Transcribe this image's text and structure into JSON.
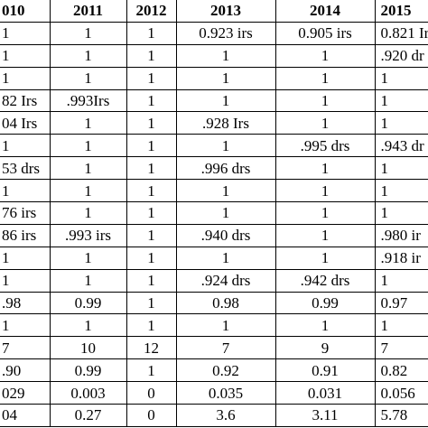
{
  "table": {
    "header": [
      "010",
      "2011",
      "2012",
      "2013",
      "2014",
      "2015"
    ],
    "rows": [
      [
        "1",
        "1",
        "1",
        "0.923 irs",
        "0.905 irs",
        "0.821 Ir"
      ],
      [
        "1",
        "1",
        "1",
        "1",
        "1",
        ".920 dr"
      ],
      [
        "1",
        "1",
        "1",
        "1",
        "1",
        "1"
      ],
      [
        "82 Irs",
        ".993Irs",
        "1",
        "1",
        "1",
        "1"
      ],
      [
        "04 Irs",
        "1",
        "1",
        ".928 Irs",
        "1",
        "1"
      ],
      [
        "1",
        "1",
        "1",
        "1",
        ".995 drs",
        ".943 dr"
      ],
      [
        "53 drs",
        "1",
        "1",
        ".996 drs",
        "1",
        "1"
      ],
      [
        "1",
        "1",
        "1",
        "1",
        "1",
        "1"
      ],
      [
        "76 irs",
        "1",
        "1",
        "1",
        "1",
        "1"
      ],
      [
        "86 irs",
        ".993 irs",
        "1",
        ".940 drs",
        "1",
        ".980 ir"
      ],
      [
        "1",
        "1",
        "1",
        "1",
        "1",
        ".918 ir"
      ],
      [
        "1",
        "1",
        "1",
        ".924 drs",
        ".942 drs",
        "1"
      ],
      [
        ".98",
        "0.99",
        "1",
        "0.98",
        "0.99",
        "0.97"
      ],
      [
        "1",
        "1",
        "1",
        "1",
        "1",
        "1"
      ],
      [
        "7",
        "10",
        "12",
        "7",
        "9",
        "7"
      ],
      [
        ".90",
        "0.99",
        "1",
        "0.92",
        "0.91",
        "0.82"
      ],
      [
        "029",
        "0.003",
        "0",
        "0.035",
        "0.031",
        "0.056"
      ],
      [
        "04",
        "0.27",
        "0",
        "3.6",
        "3.11",
        "5.78"
      ]
    ]
  }
}
